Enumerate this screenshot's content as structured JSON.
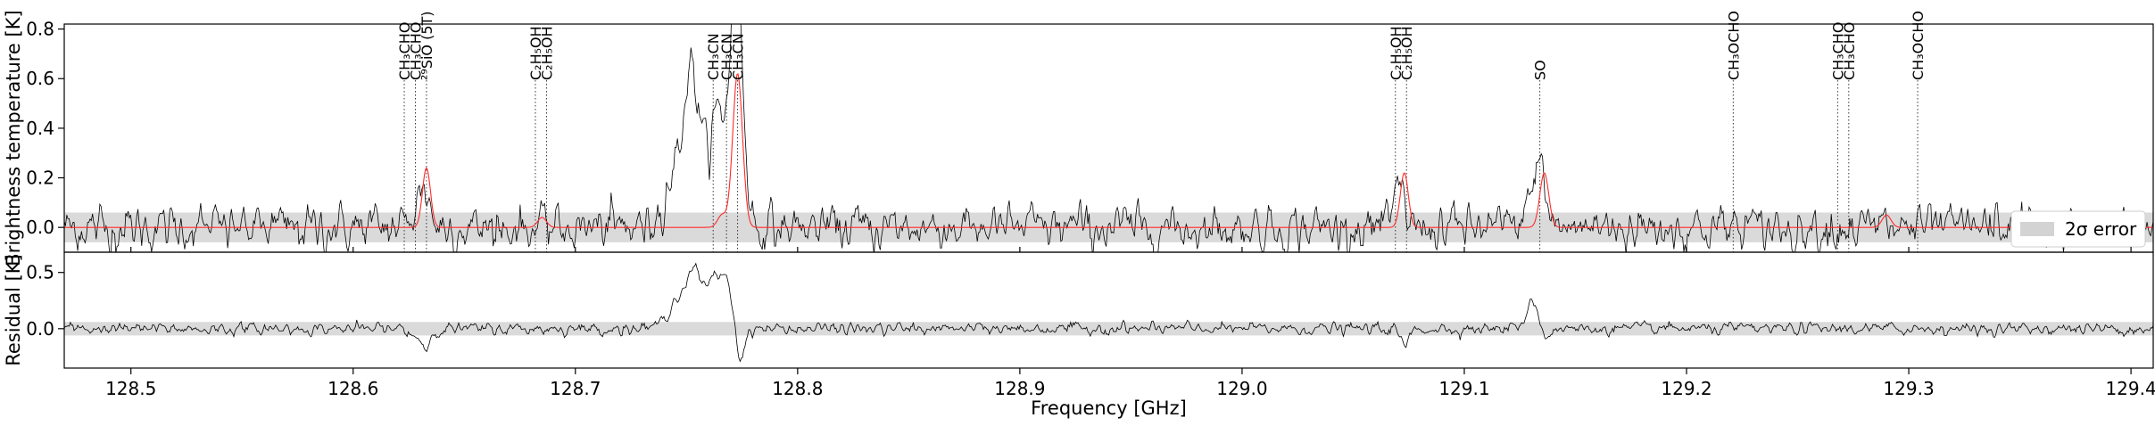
{
  "chart_data": [
    {
      "type": "line",
      "panel": "spectrum",
      "xlabel": "",
      "ylabel": "Brightness temperature [K]",
      "xlim": [
        128.47,
        129.41
      ],
      "ylim": [
        -0.1,
        0.82
      ],
      "yticks": [
        0.0,
        0.2,
        0.4,
        0.6,
        0.8
      ],
      "ytick_labels": [
        "0.0",
        "0.2",
        "0.4",
        "0.6",
        "0.8"
      ],
      "noise_rms": 0.035,
      "error_band": [
        -0.06,
        0.06
      ],
      "legend": {
        "label": "2σ error",
        "placement": "right",
        "color": "#d3d3d3"
      },
      "series": [
        {
          "color": "#000000",
          "peaks": [
            {
              "x": 128.628,
              "amp": 0.05,
              "width": 0.003
            },
            {
              "x": 128.632,
              "amp": 0.14,
              "width": 0.0025
            },
            {
              "x": 128.747,
              "amp": 0.25,
              "width": 0.006
            },
            {
              "x": 128.752,
              "amp": 0.42,
              "width": 0.003
            },
            {
              "x": 128.757,
              "amp": 0.2,
              "width": 0.003
            },
            {
              "x": 128.764,
              "amp": 0.44,
              "width": 0.003
            },
            {
              "x": 128.771,
              "amp": 0.64,
              "width": 0.0025
            },
            {
              "x": 128.774,
              "amp": 0.55,
              "width": 0.0025
            },
            {
              "x": 129.071,
              "amp": 0.14,
              "width": 0.0025
            },
            {
              "x": 129.133,
              "amp": 0.27,
              "width": 0.003
            }
          ]
        },
        {
          "color": "#ff2a2a",
          "peaks": [
            {
              "x": 128.633,
              "amp": 0.24,
              "width": 0.0018
            },
            {
              "x": 128.685,
              "amp": 0.04,
              "width": 0.002
            },
            {
              "x": 128.766,
              "amp": 0.05,
              "width": 0.002
            },
            {
              "x": 128.773,
              "amp": 0.62,
              "width": 0.0022
            },
            {
              "x": 129.073,
              "amp": 0.22,
              "width": 0.0018
            },
            {
              "x": 129.136,
              "amp": 0.22,
              "width": 0.002
            },
            {
              "x": 129.29,
              "amp": 0.05,
              "width": 0.002
            }
          ]
        }
      ],
      "annotations": [
        {
          "x": 128.623,
          "label": "CH₃CHO"
        },
        {
          "x": 128.628,
          "label": "CH₃CHO"
        },
        {
          "x": 128.633,
          "label": "²⁹SiO (5T)"
        },
        {
          "x": 128.682,
          "label": "C₂H₅OH"
        },
        {
          "x": 128.687,
          "label": "C₂H₅OH"
        },
        {
          "x": 128.762,
          "label": "CH₃CN"
        },
        {
          "x": 128.768,
          "label": "CH₃CN"
        },
        {
          "x": 128.773,
          "label": "CH₃CN"
        },
        {
          "x": 129.069,
          "label": "C₂H₅OH"
        },
        {
          "x": 129.074,
          "label": "C₂H₅OH"
        },
        {
          "x": 129.134,
          "label": "SO"
        },
        {
          "x": 129.221,
          "label": "CH₃OCHO"
        },
        {
          "x": 129.268,
          "label": "CH₃CHO"
        },
        {
          "x": 129.273,
          "label": "CH₃CHO"
        },
        {
          "x": 129.304,
          "label": "CH₃OCHO"
        }
      ]
    },
    {
      "type": "line",
      "panel": "residual",
      "xlabel": "Frequency [GHz]",
      "ylabel": "Residual [K]",
      "xlim": [
        128.47,
        129.41
      ],
      "ylim": [
        -0.35,
        0.68
      ],
      "xticks": [
        128.5,
        128.6,
        128.7,
        128.8,
        128.9,
        129.0,
        129.1,
        129.2,
        129.3,
        129.4
      ],
      "xtick_labels": [
        "128.5",
        "128.6",
        "128.7",
        "128.8",
        "128.9",
        "129.0",
        "129.1",
        "129.2",
        "129.3",
        "129.4"
      ],
      "yticks": [
        0.0,
        0.5
      ],
      "ytick_labels": [
        "0.0",
        "0.5"
      ],
      "noise_rms": 0.02,
      "error_band": [
        -0.06,
        0.06
      ],
      "series": [
        {
          "color": "#000000",
          "peaks": [
            {
              "x": 128.628,
              "amp": -0.06,
              "width": 0.003
            },
            {
              "x": 128.633,
              "amp": -0.15,
              "width": 0.002
            },
            {
              "x": 128.747,
              "amp": 0.28,
              "width": 0.005
            },
            {
              "x": 128.754,
              "amp": 0.42,
              "width": 0.003
            },
            {
              "x": 128.762,
              "amp": 0.4,
              "width": 0.003
            },
            {
              "x": 128.768,
              "amp": 0.4,
              "width": 0.003
            },
            {
              "x": 128.774,
              "amp": -0.3,
              "width": 0.002
            },
            {
              "x": 129.073,
              "amp": -0.15,
              "width": 0.002
            },
            {
              "x": 129.131,
              "amp": 0.25,
              "width": 0.003
            },
            {
              "x": 129.136,
              "amp": -0.12,
              "width": 0.002
            }
          ]
        }
      ]
    }
  ]
}
